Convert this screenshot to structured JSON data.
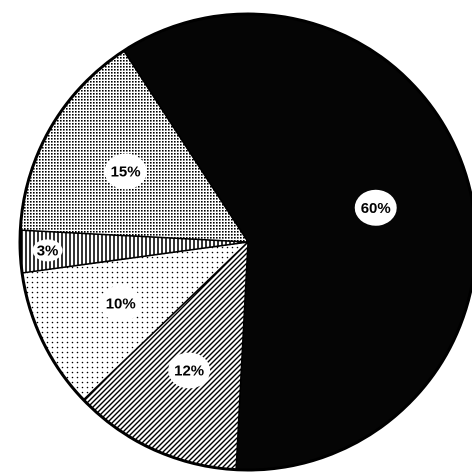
{
  "chart_data": {
    "type": "pie",
    "title": "",
    "slices": [
      {
        "label": "60%",
        "value": 60,
        "pattern": "solid-black"
      },
      {
        "label": "12%",
        "value": 12,
        "pattern": "diagonal-hatch"
      },
      {
        "label": "10%",
        "value": 10,
        "pattern": "sparse-dots"
      },
      {
        "label": "3%",
        "value": 3,
        "pattern": "vertical-lines"
      },
      {
        "label": "15%",
        "value": 15,
        "pattern": "dense-dots"
      }
    ],
    "legend": "none"
  }
}
